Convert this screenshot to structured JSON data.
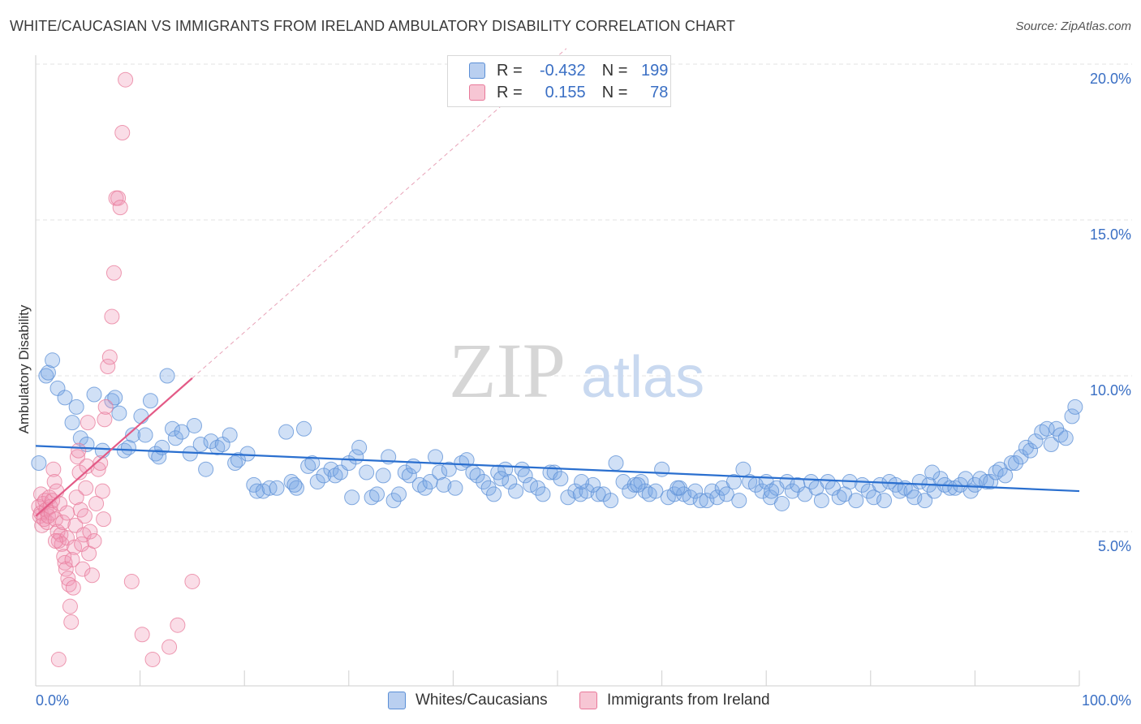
{
  "title": "WHITE/CAUCASIAN VS IMMIGRANTS FROM IRELAND AMBULATORY DISABILITY CORRELATION CHART",
  "source": "Source: ZipAtlas.com",
  "watermark": {
    "zip": "ZIP",
    "atlas": "atlas"
  },
  "legend_top": [
    {
      "r_label": "R = ",
      "r_value": "-0.432",
      "n_label": "N = ",
      "n_value": "199",
      "color": "#5b8fd6"
    },
    {
      "r_label": "R = ",
      "r_value": "0.155",
      "n_label": "N = ",
      "n_value": "78",
      "color": "#e8799a"
    }
  ],
  "legend_bottom": [
    {
      "label": "Whites/Caucasians",
      "color": "#5b8fd6"
    },
    {
      "label": "Immigrants from Ireland",
      "color": "#e8799a"
    }
  ],
  "chart_data": {
    "type": "scatter",
    "ylabel": "Ambulatory Disability",
    "xlabel": "",
    "xlim": [
      0,
      100
    ],
    "ylim": [
      0,
      20.5
    ],
    "x_ticks": [
      "0.0%",
      "100.0%"
    ],
    "y_ticks": [
      {
        "value": 5,
        "label": "5.0%"
      },
      {
        "value": 10,
        "label": "10.0%"
      },
      {
        "value": 15,
        "label": "15.0%"
      },
      {
        "value": 20,
        "label": "20.0%"
      }
    ],
    "grid": true,
    "series": [
      {
        "name": "Whites/Caucasians",
        "color": "#5b8fd6",
        "trend": {
          "x0": 0,
          "y0": 7.75,
          "x1": 100,
          "y1": 6.3,
          "solid_to": 100
        },
        "points": [
          [
            0.3,
            7.2
          ],
          [
            1.0,
            10.0
          ],
          [
            1.2,
            10.1
          ],
          [
            1.6,
            10.5
          ],
          [
            2.1,
            9.6
          ],
          [
            2.8,
            9.3
          ],
          [
            3.5,
            8.5
          ],
          [
            3.9,
            9.0
          ],
          [
            4.3,
            8.0
          ],
          [
            4.9,
            7.8
          ],
          [
            5.6,
            9.4
          ],
          [
            6.4,
            7.6
          ],
          [
            7.3,
            9.2
          ],
          [
            7.6,
            9.3
          ],
          [
            8.0,
            8.8
          ],
          [
            8.5,
            7.6
          ],
          [
            8.9,
            7.7
          ],
          [
            9.3,
            8.1
          ],
          [
            10.1,
            8.7
          ],
          [
            10.5,
            8.1
          ],
          [
            11.0,
            9.2
          ],
          [
            11.5,
            7.5
          ],
          [
            11.8,
            7.4
          ],
          [
            12.1,
            7.7
          ],
          [
            12.6,
            10.0
          ],
          [
            13.1,
            8.3
          ],
          [
            13.4,
            8.0
          ],
          [
            14.0,
            8.2
          ],
          [
            14.8,
            7.5
          ],
          [
            15.2,
            8.4
          ],
          [
            15.8,
            7.8
          ],
          [
            16.3,
            7.0
          ],
          [
            16.8,
            7.9
          ],
          [
            17.4,
            7.7
          ],
          [
            17.9,
            7.8
          ],
          [
            18.6,
            8.1
          ],
          [
            19.1,
            7.2
          ],
          [
            19.4,
            7.3
          ],
          [
            20.3,
            7.5
          ],
          [
            20.9,
            6.5
          ],
          [
            21.2,
            6.3
          ],
          [
            21.8,
            6.3
          ],
          [
            22.4,
            6.4
          ],
          [
            23.1,
            6.4
          ],
          [
            24.0,
            8.2
          ],
          [
            24.5,
            6.6
          ],
          [
            25.0,
            6.4
          ],
          [
            25.7,
            8.3
          ],
          [
            26.1,
            7.1
          ],
          [
            26.5,
            7.2
          ],
          [
            27.0,
            6.6
          ],
          [
            27.6,
            6.8
          ],
          [
            28.3,
            7.0
          ],
          [
            28.7,
            6.8
          ],
          [
            29.2,
            6.9
          ],
          [
            30.0,
            7.2
          ],
          [
            30.7,
            7.4
          ],
          [
            31.0,
            7.7
          ],
          [
            31.7,
            6.9
          ],
          [
            32.2,
            6.1
          ],
          [
            32.7,
            6.2
          ],
          [
            33.3,
            6.8
          ],
          [
            33.8,
            7.4
          ],
          [
            34.3,
            6.0
          ],
          [
            34.8,
            6.2
          ],
          [
            35.4,
            6.9
          ],
          [
            35.8,
            6.8
          ],
          [
            36.2,
            7.1
          ],
          [
            36.8,
            6.5
          ],
          [
            37.3,
            6.4
          ],
          [
            37.8,
            6.6
          ],
          [
            38.3,
            7.4
          ],
          [
            38.7,
            6.9
          ],
          [
            39.1,
            6.5
          ],
          [
            39.6,
            7.0
          ],
          [
            40.2,
            6.4
          ],
          [
            40.8,
            7.2
          ],
          [
            41.3,
            7.3
          ],
          [
            41.9,
            6.9
          ],
          [
            42.3,
            6.8
          ],
          [
            42.9,
            6.6
          ],
          [
            43.4,
            6.4
          ],
          [
            43.9,
            6.2
          ],
          [
            44.3,
            6.9
          ],
          [
            45.0,
            7.0
          ],
          [
            45.4,
            6.6
          ],
          [
            46.0,
            6.3
          ],
          [
            46.6,
            7.0
          ],
          [
            46.9,
            6.8
          ],
          [
            47.4,
            6.5
          ],
          [
            48.1,
            6.4
          ],
          [
            48.6,
            6.2
          ],
          [
            49.3,
            6.9
          ],
          [
            49.7,
            6.9
          ],
          [
            50.3,
            6.7
          ],
          [
            51.0,
            6.1
          ],
          [
            51.7,
            6.3
          ],
          [
            52.2,
            6.2
          ],
          [
            52.8,
            6.3
          ],
          [
            53.4,
            6.5
          ],
          [
            53.9,
            6.2
          ],
          [
            54.4,
            6.2
          ],
          [
            55.1,
            6.0
          ],
          [
            55.6,
            7.2
          ],
          [
            56.3,
            6.6
          ],
          [
            56.9,
            6.3
          ],
          [
            57.4,
            6.5
          ],
          [
            58.0,
            6.6
          ],
          [
            58.4,
            6.3
          ],
          [
            58.8,
            6.2
          ],
          [
            59.4,
            6.3
          ],
          [
            60.0,
            7.0
          ],
          [
            60.6,
            6.1
          ],
          [
            61.2,
            6.2
          ],
          [
            61.7,
            6.4
          ],
          [
            62.1,
            6.2
          ],
          [
            62.7,
            6.1
          ],
          [
            63.2,
            6.3
          ],
          [
            63.7,
            6.0
          ],
          [
            64.3,
            6.0
          ],
          [
            64.8,
            6.3
          ],
          [
            65.3,
            6.1
          ],
          [
            65.8,
            6.4
          ],
          [
            66.2,
            6.2
          ],
          [
            66.9,
            6.6
          ],
          [
            67.4,
            6.0
          ],
          [
            67.8,
            7.0
          ],
          [
            68.4,
            6.6
          ],
          [
            69.0,
            6.5
          ],
          [
            69.6,
            6.3
          ],
          [
            70.0,
            6.6
          ],
          [
            70.4,
            6.1
          ],
          [
            71.0,
            6.4
          ],
          [
            71.5,
            5.9
          ],
          [
            72.0,
            6.6
          ],
          [
            72.5,
            6.3
          ],
          [
            73.0,
            6.5
          ],
          [
            73.7,
            6.2
          ],
          [
            74.3,
            6.6
          ],
          [
            74.8,
            6.4
          ],
          [
            75.3,
            6.0
          ],
          [
            75.9,
            6.6
          ],
          [
            76.4,
            6.4
          ],
          [
            77.0,
            6.1
          ],
          [
            77.5,
            6.2
          ],
          [
            78.0,
            6.6
          ],
          [
            78.6,
            6.0
          ],
          [
            79.2,
            6.5
          ],
          [
            79.8,
            6.3
          ],
          [
            80.3,
            6.1
          ],
          [
            80.9,
            6.5
          ],
          [
            81.3,
            6.0
          ],
          [
            81.8,
            6.6
          ],
          [
            82.4,
            6.5
          ],
          [
            82.8,
            6.3
          ],
          [
            83.3,
            6.4
          ],
          [
            83.9,
            6.3
          ],
          [
            84.2,
            6.1
          ],
          [
            84.7,
            6.6
          ],
          [
            85.2,
            6.0
          ],
          [
            85.6,
            6.5
          ],
          [
            86.1,
            6.3
          ],
          [
            86.7,
            6.7
          ],
          [
            87.1,
            6.5
          ],
          [
            87.6,
            6.4
          ],
          [
            88.1,
            6.4
          ],
          [
            88.6,
            6.5
          ],
          [
            89.1,
            6.7
          ],
          [
            89.6,
            6.3
          ],
          [
            90.0,
            6.5
          ],
          [
            90.5,
            6.7
          ],
          [
            91.1,
            6.6
          ],
          [
            91.5,
            6.6
          ],
          [
            92.0,
            6.9
          ],
          [
            92.4,
            7.0
          ],
          [
            92.9,
            6.8
          ],
          [
            93.5,
            7.2
          ],
          [
            93.9,
            7.2
          ],
          [
            94.4,
            7.4
          ],
          [
            94.9,
            7.7
          ],
          [
            95.3,
            7.6
          ],
          [
            95.8,
            7.9
          ],
          [
            96.4,
            8.2
          ],
          [
            96.9,
            8.3
          ],
          [
            97.3,
            7.8
          ],
          [
            97.8,
            8.3
          ],
          [
            98.2,
            8.1
          ],
          [
            98.7,
            8.0
          ],
          [
            99.3,
            8.7
          ],
          [
            99.6,
            9.0
          ],
          [
            70.5,
            6.3
          ],
          [
            44.6,
            6.7
          ],
          [
            30.3,
            6.1
          ],
          [
            24.8,
            6.5
          ],
          [
            57.7,
            6.5
          ],
          [
            85.9,
            6.9
          ],
          [
            61.5,
            6.4
          ],
          [
            52.3,
            6.6
          ]
        ]
      },
      {
        "name": "Immigrants from Ireland",
        "color": "#e8799a",
        "trend": {
          "x0": 0,
          "y0": 5.5,
          "x1": 100,
          "y1": 35.0,
          "solid_to": 15
        },
        "points": [
          [
            0.3,
            5.8
          ],
          [
            0.4,
            5.5
          ],
          [
            0.5,
            6.2
          ],
          [
            0.5,
            5.6
          ],
          [
            0.6,
            5.2
          ],
          [
            0.7,
            5.9
          ],
          [
            0.8,
            5.4
          ],
          [
            0.9,
            6.0
          ],
          [
            1.0,
            5.7
          ],
          [
            1.1,
            5.3
          ],
          [
            1.2,
            5.5
          ],
          [
            1.3,
            6.1
          ],
          [
            1.4,
            5.8
          ],
          [
            1.5,
            5.6
          ],
          [
            1.6,
            6.0
          ],
          [
            1.7,
            7.0
          ],
          [
            1.8,
            6.6
          ],
          [
            1.9,
            5.4
          ],
          [
            2.0,
            6.3
          ],
          [
            2.1,
            5.0
          ],
          [
            2.2,
            4.7
          ],
          [
            2.3,
            5.9
          ],
          [
            2.4,
            4.9
          ],
          [
            2.5,
            4.6
          ],
          [
            2.6,
            5.3
          ],
          [
            2.7,
            4.2
          ],
          [
            2.8,
            4.0
          ],
          [
            2.9,
            3.8
          ],
          [
            3.0,
            4.8
          ],
          [
            3.1,
            3.5
          ],
          [
            3.2,
            3.3
          ],
          [
            3.3,
            2.6
          ],
          [
            3.4,
            2.1
          ],
          [
            3.5,
            4.1
          ],
          [
            3.6,
            3.2
          ],
          [
            3.7,
            4.5
          ],
          [
            3.8,
            5.2
          ],
          [
            3.9,
            6.1
          ],
          [
            4.0,
            7.4
          ],
          [
            4.1,
            7.6
          ],
          [
            4.2,
            6.9
          ],
          [
            4.3,
            5.7
          ],
          [
            4.4,
            4.6
          ],
          [
            4.5,
            3.8
          ],
          [
            4.6,
            4.9
          ],
          [
            4.7,
            5.5
          ],
          [
            4.8,
            6.4
          ],
          [
            4.9,
            7.1
          ],
          [
            5.0,
            8.5
          ],
          [
            5.1,
            4.3
          ],
          [
            5.2,
            5.0
          ],
          [
            5.4,
            3.6
          ],
          [
            5.6,
            4.7
          ],
          [
            5.8,
            5.9
          ],
          [
            6.0,
            7.0
          ],
          [
            6.2,
            7.2
          ],
          [
            6.4,
            6.3
          ],
          [
            6.5,
            5.4
          ],
          [
            6.6,
            8.6
          ],
          [
            6.7,
            9.0
          ],
          [
            6.9,
            10.3
          ],
          [
            7.1,
            10.6
          ],
          [
            7.3,
            11.9
          ],
          [
            7.5,
            13.3
          ],
          [
            7.7,
            15.7
          ],
          [
            7.9,
            15.7
          ],
          [
            8.1,
            15.4
          ],
          [
            8.3,
            17.8
          ],
          [
            8.6,
            19.5
          ],
          [
            9.2,
            3.4
          ],
          [
            10.2,
            1.7
          ],
          [
            11.2,
            0.9
          ],
          [
            12.8,
            1.3
          ],
          [
            13.6,
            2.0
          ],
          [
            15.0,
            3.4
          ],
          [
            2.2,
            0.9
          ],
          [
            3.0,
            5.6
          ],
          [
            1.9,
            4.7
          ]
        ]
      }
    ]
  }
}
